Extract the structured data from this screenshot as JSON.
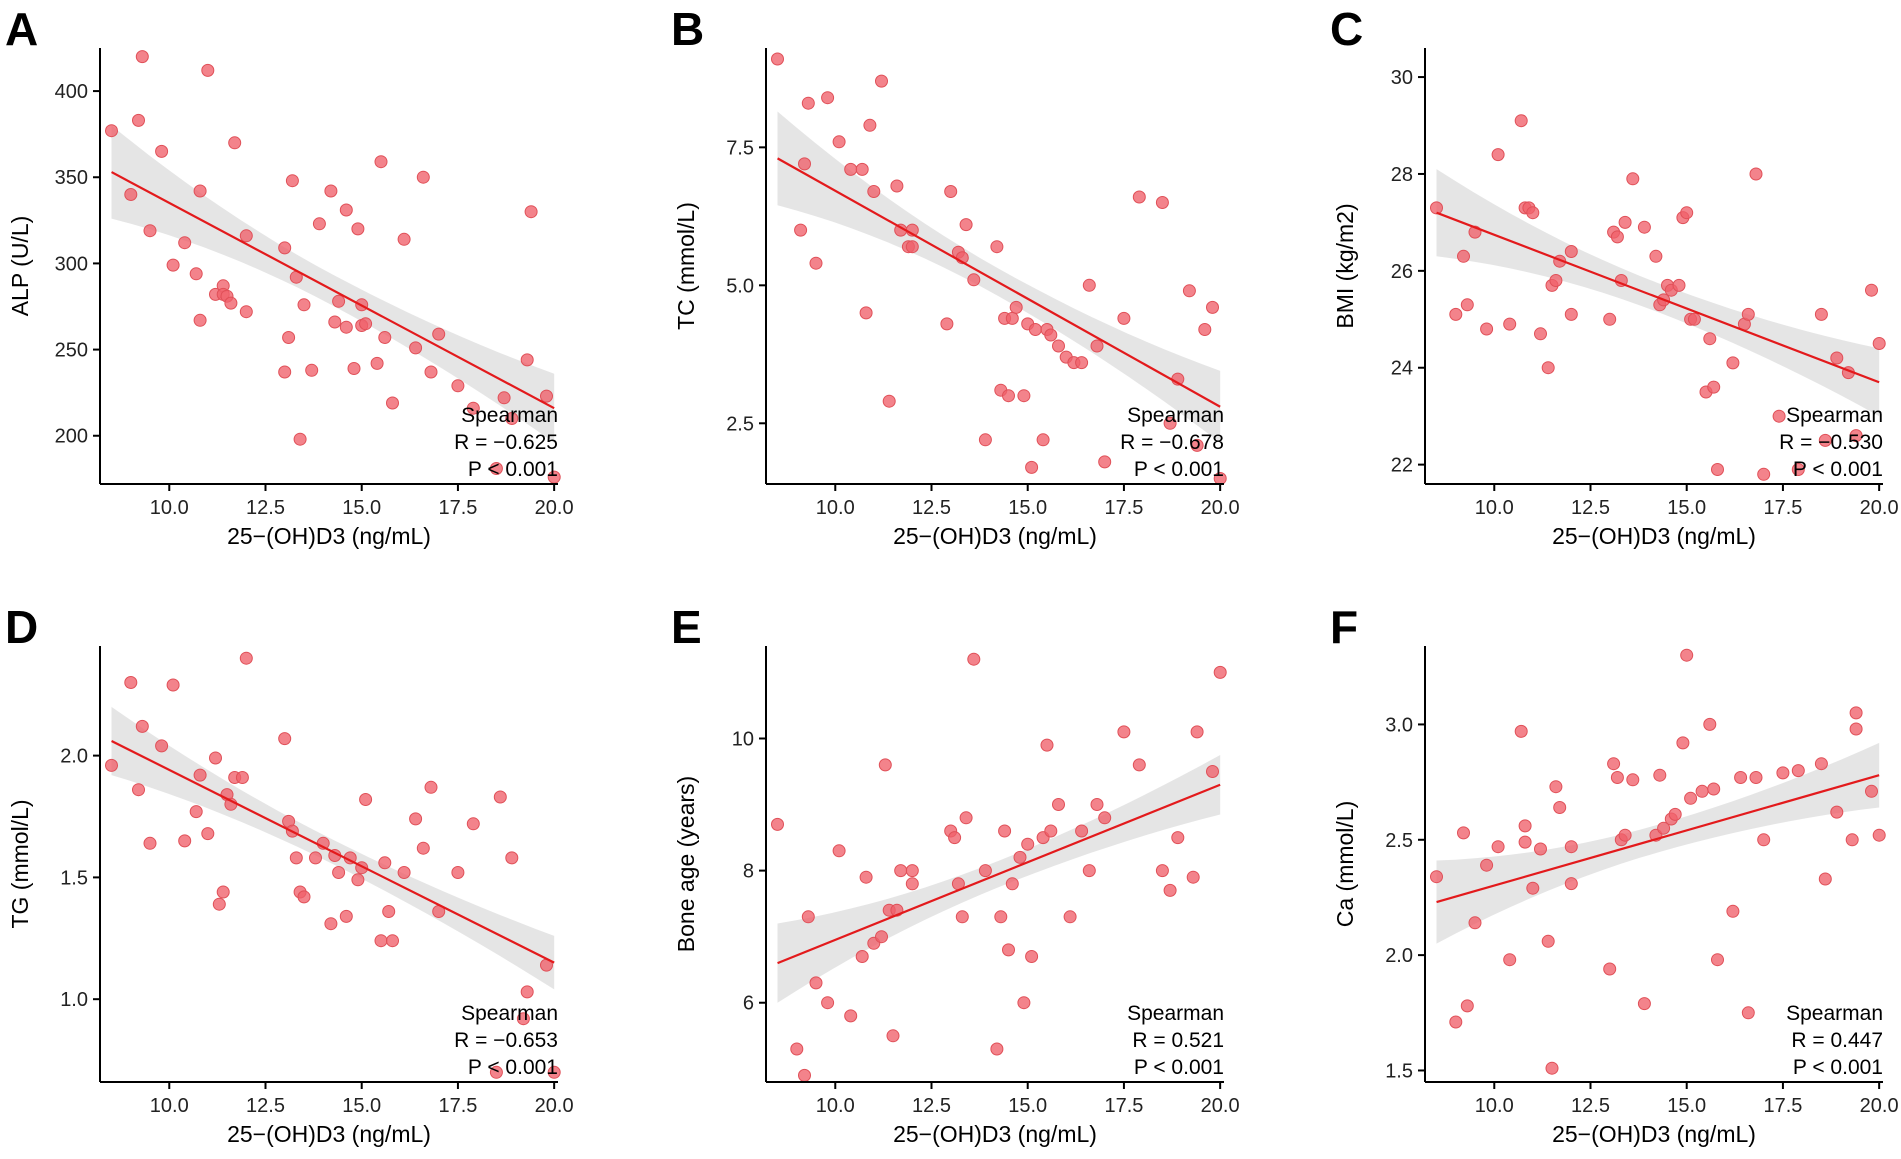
{
  "chart_data": [
    {
      "type": "scatter",
      "panel": "A",
      "xlabel": "25−(OH)D3 (ng/mL)",
      "ylabel": "ALP (U/L)",
      "xlim": [
        8.2,
        20.1
      ],
      "ylim": [
        172,
        425
      ],
      "xticks": [
        10,
        12.5,
        15,
        17.5,
        20
      ],
      "xtick_labels": [
        "10.0",
        "12.5",
        "15.0",
        "17.5",
        "20.0"
      ],
      "yticks": [
        200,
        250,
        300,
        350,
        400
      ],
      "ytick_labels": [
        "200",
        "250",
        "300",
        "350",
        "400"
      ],
      "method": "Spearman",
      "r_label": "R = −0.625",
      "p_label": "P < 0.001",
      "fit": {
        "x0": 8.5,
        "y0": 353,
        "x1": 20.0,
        "y1": 216
      },
      "band": {
        "w0": 27,
        "wmid": 9,
        "w1": 20
      },
      "x": [
        8.5,
        9.0,
        9.2,
        9.3,
        9.5,
        9.8,
        10.1,
        10.4,
        10.7,
        10.8,
        10.8,
        11.0,
        11.2,
        11.4,
        11.4,
        11.5,
        11.6,
        11.7,
        12.0,
        12.0,
        13.0,
        13.0,
        13.1,
        13.2,
        13.3,
        13.4,
        13.5,
        13.7,
        13.9,
        14.2,
        14.3,
        14.4,
        14.6,
        14.6,
        14.8,
        14.9,
        15.0,
        15.0,
        15.1,
        15.4,
        15.5,
        15.6,
        15.8,
        16.1,
        16.4,
        16.6,
        16.8,
        17.0,
        17.5,
        17.9,
        18.5,
        18.7,
        18.9,
        19.3,
        19.4,
        19.8,
        20.0
      ],
      "y": [
        377,
        340,
        383,
        420,
        319,
        365,
        299,
        312,
        294,
        267,
        342,
        412,
        282,
        287,
        282,
        281,
        277,
        370,
        316,
        272,
        309,
        237,
        257,
        348,
        292,
        198,
        276,
        238,
        323,
        342,
        266,
        278,
        263,
        331,
        239,
        320,
        276,
        264,
        265,
        242,
        359,
        257,
        219,
        314,
        251,
        350,
        237,
        259,
        229,
        216,
        181,
        222,
        210,
        244,
        330,
        223,
        176
      ]
    },
    {
      "type": "scatter",
      "panel": "B",
      "xlabel": "25−(OH)D3 (ng/mL)",
      "ylabel": "TC (mmol/L)",
      "xlim": [
        8.2,
        20.1
      ],
      "ylim": [
        1.4,
        9.3
      ],
      "xticks": [
        10,
        12.5,
        15,
        17.5,
        20
      ],
      "xtick_labels": [
        "10.0",
        "12.5",
        "15.0",
        "17.5",
        "20.0"
      ],
      "yticks": [
        2.5,
        5.0,
        7.5
      ],
      "ytick_labels": [
        "2.5",
        "5.0",
        "7.5"
      ],
      "method": "Spearman",
      "r_label": "R = −0.678",
      "p_label": "P < 0.001",
      "fit": {
        "x0": 8.5,
        "y0": 7.3,
        "x1": 20.0,
        "y1": 2.8
      },
      "band": {
        "w0": 0.85,
        "wmid": 0.25,
        "w1": 0.65
      },
      "x": [
        8.5,
        9.1,
        9.2,
        9.3,
        9.5,
        9.8,
        10.1,
        10.4,
        10.7,
        10.8,
        10.9,
        11.0,
        11.2,
        11.4,
        11.6,
        11.7,
        11.9,
        12.0,
        12.0,
        12.9,
        13.0,
        13.2,
        13.3,
        13.4,
        13.6,
        13.9,
        14.2,
        14.3,
        14.4,
        14.5,
        14.6,
        14.7,
        14.9,
        15.0,
        15.1,
        15.2,
        15.4,
        15.5,
        15.6,
        15.8,
        16.0,
        16.2,
        16.4,
        16.6,
        16.8,
        17.0,
        17.5,
        17.9,
        18.5,
        18.7,
        18.9,
        19.2,
        19.4,
        19.6,
        19.8,
        20.0
      ],
      "y": [
        9.1,
        6.0,
        7.2,
        8.3,
        5.4,
        8.4,
        7.6,
        7.1,
        7.1,
        4.5,
        7.9,
        6.7,
        8.7,
        2.9,
        6.8,
        6.0,
        5.7,
        6.0,
        5.7,
        4.3,
        6.7,
        5.6,
        5.5,
        6.1,
        5.1,
        2.2,
        5.7,
        3.1,
        4.4,
        3.0,
        4.4,
        4.6,
        3.0,
        4.3,
        1.7,
        4.2,
        2.2,
        4.2,
        4.1,
        3.9,
        3.7,
        3.6,
        3.6,
        5.0,
        3.9,
        1.8,
        4.4,
        6.6,
        6.5,
        2.5,
        3.3,
        4.9,
        2.1,
        4.2,
        4.6,
        1.5
      ]
    },
    {
      "type": "scatter",
      "panel": "C",
      "xlabel": "25−(OH)D3 (ng/mL)",
      "ylabel": "BMI (kg/m2)",
      "xlim": [
        8.2,
        20.1
      ],
      "ylim": [
        21.6,
        30.6
      ],
      "xticks": [
        10,
        12.5,
        15,
        17.5,
        20
      ],
      "xtick_labels": [
        "10.0",
        "12.5",
        "15.0",
        "17.5",
        "20.0"
      ],
      "yticks": [
        22,
        24,
        26,
        28,
        30
      ],
      "ytick_labels": [
        "22",
        "24",
        "26",
        "28",
        "30"
      ],
      "method": "Spearman",
      "r_label": "R = −0.530",
      "p_label": "P < 0.001",
      "fit": {
        "x0": 8.5,
        "y0": 27.2,
        "x1": 20.0,
        "y1": 23.7
      },
      "band": {
        "w0": 0.9,
        "wmid": 0.3,
        "w1": 0.7
      },
      "x": [
        8.5,
        9.0,
        9.2,
        9.3,
        9.5,
        9.8,
        10.1,
        10.4,
        10.7,
        10.8,
        10.9,
        11.0,
        11.2,
        11.4,
        11.5,
        11.6,
        11.7,
        12.0,
        12.0,
        13.0,
        13.1,
        13.2,
        13.3,
        13.4,
        13.6,
        13.9,
        14.2,
        14.3,
        14.4,
        14.5,
        14.6,
        14.8,
        14.9,
        15.0,
        15.1,
        15.2,
        15.5,
        15.6,
        15.7,
        15.8,
        16.2,
        16.5,
        16.6,
        16.8,
        17.0,
        17.4,
        17.9,
        18.5,
        18.6,
        18.9,
        19.2,
        19.4,
        19.8,
        20.0
      ],
      "y": [
        27.3,
        25.1,
        26.3,
        25.3,
        26.8,
        24.8,
        28.4,
        24.9,
        29.1,
        27.3,
        27.3,
        27.2,
        24.7,
        24.0,
        25.7,
        25.8,
        26.2,
        25.1,
        26.4,
        25.0,
        26.8,
        26.7,
        25.8,
        27.0,
        27.9,
        26.9,
        26.3,
        25.3,
        25.4,
        25.7,
        25.6,
        25.7,
        27.1,
        27.2,
        25.0,
        25.0,
        23.5,
        24.6,
        23.6,
        21.9,
        24.1,
        24.9,
        25.1,
        28.0,
        21.8,
        23.0,
        21.9,
        25.1,
        22.5,
        24.2,
        23.9,
        22.6,
        25.6,
        24.5
      ]
    },
    {
      "type": "scatter",
      "panel": "D",
      "xlabel": "25−(OH)D3 (ng/mL)",
      "ylabel": "TG (mmol/L)",
      "xlim": [
        8.2,
        20.1
      ],
      "ylim": [
        0.66,
        2.45
      ],
      "xticks": [
        10,
        12.5,
        15,
        17.5,
        20
      ],
      "xtick_labels": [
        "10.0",
        "12.5",
        "15.0",
        "17.5",
        "20.0"
      ],
      "yticks": [
        1.0,
        1.5,
        2.0
      ],
      "ytick_labels": [
        "1.0",
        "1.5",
        "2.0"
      ],
      "method": "Spearman",
      "r_label": "R = −0.653",
      "p_label": "P < 0.001",
      "fit": {
        "x0": 8.5,
        "y0": 2.06,
        "x1": 20.0,
        "y1": 1.15
      },
      "band": {
        "w0": 0.14,
        "wmid": 0.05,
        "w1": 0.11
      },
      "x": [
        8.5,
        9.0,
        9.2,
        9.3,
        9.5,
        9.8,
        10.1,
        10.4,
        10.7,
        10.8,
        11.0,
        11.2,
        11.3,
        11.4,
        11.5,
        11.6,
        11.7,
        11.9,
        12.0,
        13.0,
        13.1,
        13.2,
        13.3,
        13.4,
        13.5,
        13.8,
        14.0,
        14.2,
        14.3,
        14.4,
        14.6,
        14.7,
        14.9,
        15.0,
        15.1,
        15.5,
        15.6,
        15.7,
        15.8,
        16.1,
        16.4,
        16.6,
        16.8,
        17.0,
        17.5,
        17.9,
        18.5,
        18.6,
        18.9,
        19.2,
        19.3,
        19.8,
        20.0
      ],
      "y": [
        1.96,
        2.3,
        1.86,
        2.12,
        1.64,
        2.04,
        2.29,
        1.65,
        1.77,
        1.92,
        1.68,
        1.99,
        1.39,
        1.44,
        1.84,
        1.8,
        1.91,
        1.91,
        2.4,
        2.07,
        1.73,
        1.69,
        1.58,
        1.44,
        1.42,
        1.58,
        1.64,
        1.31,
        1.59,
        1.52,
        1.34,
        1.58,
        1.49,
        1.54,
        1.82,
        1.24,
        1.56,
        1.36,
        1.24,
        1.52,
        1.74,
        1.62,
        1.87,
        1.36,
        1.52,
        1.72,
        0.7,
        1.83,
        1.58,
        0.92,
        1.03,
        1.14,
        0.7
      ]
    },
    {
      "type": "scatter",
      "panel": "E",
      "xlabel": "25−(OH)D3 (ng/mL)",
      "ylabel": "Bone age (years)",
      "xlim": [
        8.2,
        20.1
      ],
      "ylim": [
        4.8,
        11.4
      ],
      "xticks": [
        10,
        12.5,
        15,
        17.5,
        20
      ],
      "xtick_labels": [
        "10.0",
        "12.5",
        "15.0",
        "17.5",
        "20.0"
      ],
      "yticks": [
        6,
        8,
        10
      ],
      "ytick_labels": [
        "6",
        "8",
        "10"
      ],
      "method": "Spearman",
      "r_label": "R = 0.521",
      "p_label": "P < 0.001",
      "fit": {
        "x0": 8.5,
        "y0": 6.6,
        "x1": 20.0,
        "y1": 9.3
      },
      "band": {
        "w0": 0.6,
        "wmid": 0.2,
        "w1": 0.45
      },
      "x": [
        8.5,
        9.0,
        9.2,
        9.3,
        9.5,
        9.8,
        10.1,
        10.4,
        10.7,
        10.8,
        11.0,
        11.2,
        11.3,
        11.4,
        11.5,
        11.6,
        11.7,
        12.0,
        12.0,
        13.0,
        13.1,
        13.2,
        13.3,
        13.4,
        13.6,
        13.9,
        14.2,
        14.3,
        14.4,
        14.5,
        14.6,
        14.8,
        14.9,
        15.0,
        15.1,
        15.4,
        15.5,
        15.6,
        15.8,
        16.1,
        16.4,
        16.6,
        16.8,
        17.0,
        17.5,
        17.9,
        18.5,
        18.7,
        18.9,
        19.3,
        19.4,
        19.8,
        20.0
      ],
      "y": [
        8.7,
        5.3,
        4.9,
        7.3,
        6.3,
        6.0,
        8.3,
        5.8,
        6.7,
        7.9,
        6.9,
        7.0,
        9.6,
        7.4,
        5.5,
        7.4,
        8.0,
        7.8,
        8.0,
        8.6,
        8.5,
        7.8,
        7.3,
        8.8,
        11.2,
        8.0,
        5.3,
        7.3,
        8.6,
        6.8,
        7.8,
        8.2,
        6.0,
        8.4,
        6.7,
        8.5,
        9.9,
        8.6,
        9.0,
        7.3,
        8.6,
        8.0,
        9.0,
        8.8,
        10.1,
        9.6,
        8.0,
        7.7,
        8.5,
        7.9,
        10.1,
        9.5,
        11.0
      ]
    },
    {
      "type": "scatter",
      "panel": "F",
      "xlabel": "25−(OH)D3 (ng/mL)",
      "ylabel": "Ca (mmol/L)",
      "xlim": [
        8.2,
        20.1
      ],
      "ylim": [
        1.45,
        3.34
      ],
      "xticks": [
        10,
        12.5,
        15,
        17.5,
        20
      ],
      "xtick_labels": [
        "10.0",
        "12.5",
        "15.0",
        "17.5",
        "20.0"
      ],
      "yticks": [
        1.5,
        2.0,
        2.5,
        3.0
      ],
      "ytick_labels": [
        "1.5",
        "2.0",
        "2.5",
        "3.0"
      ],
      "method": "Spearman",
      "r_label": "R = 0.447",
      "p_label": "P < 0.001",
      "fit": {
        "x0": 8.5,
        "y0": 2.23,
        "x1": 20.0,
        "y1": 2.78
      },
      "band": {
        "w0": 0.18,
        "wmid": 0.06,
        "w1": 0.14
      },
      "x": [
        8.5,
        9.0,
        9.2,
        9.3,
        9.5,
        9.8,
        10.1,
        10.4,
        10.7,
        10.8,
        10.8,
        11.0,
        11.2,
        11.4,
        11.5,
        11.6,
        11.7,
        12.0,
        12.0,
        13.0,
        13.1,
        13.2,
        13.3,
        13.4,
        13.6,
        13.9,
        14.2,
        14.3,
        14.4,
        14.6,
        14.7,
        14.9,
        15.0,
        15.1,
        15.4,
        15.6,
        15.7,
        15.8,
        16.2,
        16.4,
        16.6,
        16.8,
        17.0,
        17.5,
        17.9,
        18.5,
        18.6,
        18.9,
        19.3,
        19.4,
        19.4,
        19.8,
        20.0
      ],
      "y": [
        2.34,
        1.71,
        2.53,
        1.78,
        2.14,
        2.39,
        2.47,
        1.98,
        2.97,
        2.56,
        2.49,
        2.29,
        2.46,
        2.06,
        1.51,
        2.73,
        2.64,
        2.31,
        2.47,
        1.94,
        2.83,
        2.77,
        2.5,
        2.52,
        2.76,
        1.79,
        2.52,
        2.78,
        2.55,
        2.59,
        2.61,
        2.92,
        3.3,
        2.68,
        2.71,
        3.0,
        2.72,
        1.98,
        2.19,
        2.77,
        1.75,
        2.77,
        2.5,
        2.79,
        2.8,
        2.83,
        2.33,
        2.62,
        2.5,
        3.05,
        2.98,
        2.71,
        2.52
      ]
    }
  ]
}
